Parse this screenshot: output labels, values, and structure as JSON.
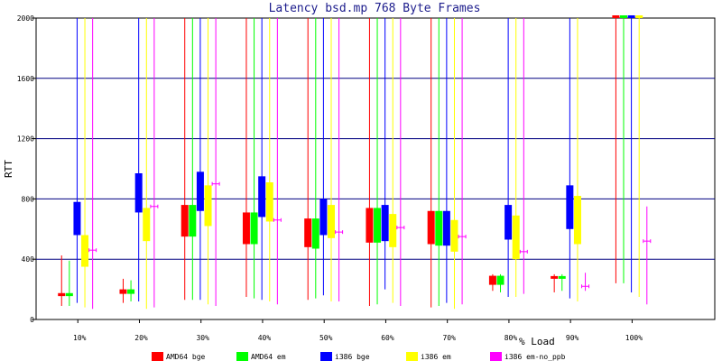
{
  "chart_data": {
    "type": "box",
    "title": "Latency bsd.mp 768 Byte Frames",
    "xlabel": "% Load",
    "ylabel": "RTT",
    "ylim": [
      0,
      2000
    ],
    "yticks": [
      0,
      400,
      800,
      1200,
      1600,
      2000
    ],
    "grid": true,
    "legend_position": "bottom",
    "categories": [
      "10%",
      "20%",
      "30%",
      "40%",
      "50%",
      "60%",
      "70%",
      "80%",
      "90%",
      "100%"
    ],
    "series": [
      {
        "name": "AMD64 bge",
        "color": "#ff0000",
        "boxes": [
          {
            "min": 90,
            "q1": 155,
            "q3": 175,
            "max": 425
          },
          {
            "min": 110,
            "q1": 170,
            "q3": 200,
            "max": 270
          },
          {
            "min": 130,
            "q1": 550,
            "q3": 760,
            "max": 2000
          },
          {
            "min": 150,
            "q1": 500,
            "q3": 710,
            "max": 2000
          },
          {
            "min": 130,
            "q1": 480,
            "q3": 670,
            "max": 2000
          },
          {
            "min": 90,
            "q1": 510,
            "q3": 740,
            "max": 2000
          },
          {
            "min": 80,
            "q1": 500,
            "q3": 720,
            "max": 2000
          },
          {
            "min": 190,
            "q1": 230,
            "q3": 290,
            "max": 300
          },
          {
            "min": 180,
            "q1": 270,
            "q3": 280,
            "max": 300
          },
          {
            "min": 240,
            "q1": 2000,
            "q3": 2000,
            "max": 2000
          }
        ]
      },
      {
        "name": "AMD64 em",
        "color": "#00ff00",
        "boxes": [
          {
            "min": 90,
            "q1": 155,
            "q3": 175,
            "max": 390
          },
          {
            "min": 120,
            "q1": 170,
            "q3": 200,
            "max": 260
          },
          {
            "min": 130,
            "q1": 550,
            "q3": 760,
            "max": 2000
          },
          {
            "min": 140,
            "q1": 500,
            "q3": 710,
            "max": 2000
          },
          {
            "min": 140,
            "q1": 470,
            "q3": 670,
            "max": 2000
          },
          {
            "min": 100,
            "q1": 510,
            "q3": 740,
            "max": 2000
          },
          {
            "min": 90,
            "q1": 490,
            "q3": 720,
            "max": 2000
          },
          {
            "min": 180,
            "q1": 230,
            "q3": 290,
            "max": 300
          },
          {
            "min": 190,
            "q1": 270,
            "q3": 280,
            "max": 300
          },
          {
            "min": 240,
            "q1": 2000,
            "q3": 2000,
            "max": 2000
          }
        ]
      },
      {
        "name": "i386 bge",
        "color": "#0000ff",
        "boxes": [
          {
            "min": 110,
            "q1": 560,
            "q3": 780,
            "max": 2000
          },
          {
            "min": 120,
            "q1": 710,
            "q3": 970,
            "max": 2000
          },
          {
            "min": 130,
            "q1": 720,
            "q3": 980,
            "max": 2000
          },
          {
            "min": 130,
            "q1": 680,
            "q3": 950,
            "max": 2000
          },
          {
            "min": 160,
            "q1": 560,
            "q3": 800,
            "max": 2000
          },
          {
            "min": 200,
            "q1": 520,
            "q3": 760,
            "max": 2000
          },
          {
            "min": 110,
            "q1": 490,
            "q3": 720,
            "max": 2000
          },
          {
            "min": 150,
            "q1": 530,
            "q3": 760,
            "max": 2000
          },
          {
            "min": 140,
            "q1": 600,
            "q3": 890,
            "max": 2000
          },
          {
            "min": 180,
            "q1": 2000,
            "q3": 2000,
            "max": 2000
          }
        ]
      },
      {
        "name": "i386 em",
        "color": "#ffff00",
        "boxes": [
          {
            "min": 80,
            "q1": 350,
            "q3": 560,
            "max": 2000
          },
          {
            "min": 70,
            "q1": 520,
            "q3": 740,
            "max": 2000
          },
          {
            "min": 100,
            "q1": 620,
            "q3": 890,
            "max": 2000
          },
          {
            "min": 120,
            "q1": 650,
            "q3": 910,
            "max": 2000
          },
          {
            "min": 120,
            "q1": 540,
            "q3": 760,
            "max": 2000
          },
          {
            "min": 110,
            "q1": 480,
            "q3": 700,
            "max": 2000
          },
          {
            "min": 70,
            "q1": 450,
            "q3": 660,
            "max": 2000
          },
          {
            "min": 150,
            "q1": 400,
            "q3": 690,
            "max": 2000
          },
          {
            "min": 120,
            "q1": 500,
            "q3": 820,
            "max": 2000
          },
          {
            "min": 150,
            "q1": 2000,
            "q3": 2000,
            "max": 2000
          }
        ]
      },
      {
        "name": "i386 em-no_ppb",
        "color": "#ff00ff",
        "boxes": [
          {
            "min": 70,
            "q1": 460,
            "q3": 460,
            "max": 2000
          },
          {
            "min": 80,
            "q1": 750,
            "q3": 750,
            "max": 2000
          },
          {
            "min": 90,
            "q1": 900,
            "q3": 900,
            "max": 2000
          },
          {
            "min": 100,
            "q1": 660,
            "q3": 660,
            "max": 2000
          },
          {
            "min": 120,
            "q1": 580,
            "q3": 580,
            "max": 2000
          },
          {
            "min": 90,
            "q1": 610,
            "q3": 610,
            "max": 2000
          },
          {
            "min": 100,
            "q1": 550,
            "q3": 550,
            "max": 2000
          },
          {
            "min": 170,
            "q1": 450,
            "q3": 450,
            "max": 2000
          },
          {
            "min": 190,
            "q1": 220,
            "q3": 220,
            "max": 310
          },
          {
            "min": 100,
            "q1": 520,
            "q3": 520,
            "max": 750
          }
        ]
      }
    ]
  }
}
